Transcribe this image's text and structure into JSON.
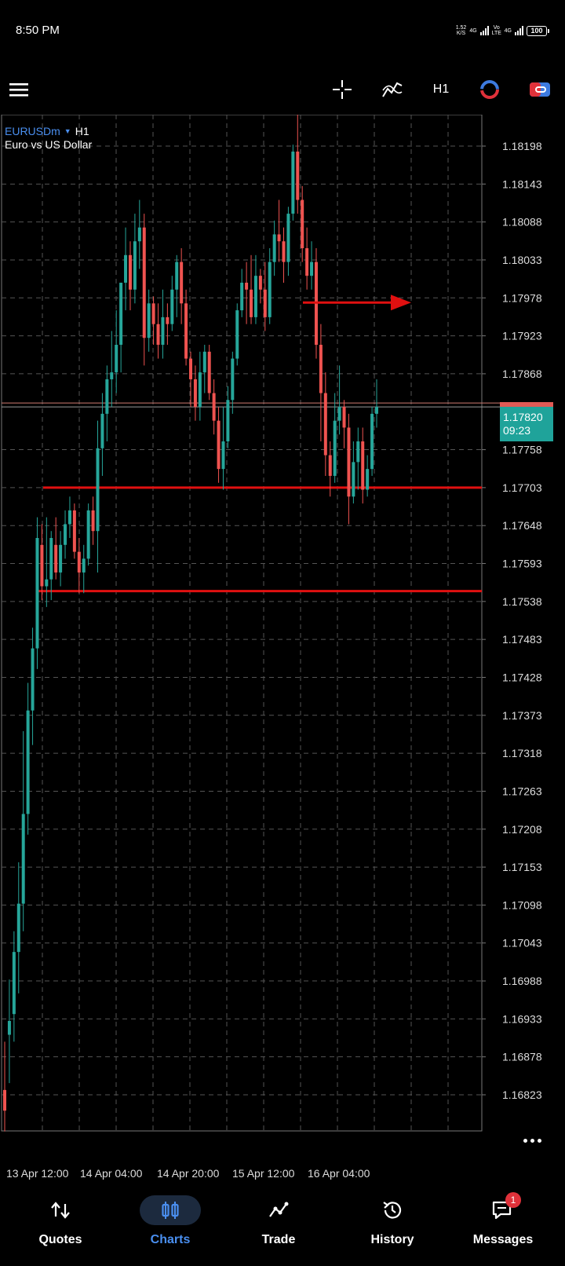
{
  "status_bar": {
    "time": "8:50 PM",
    "net_speed": "1.52",
    "net_speed_unit": "K/S",
    "sim1_type": "4G",
    "volte": "Vo LTE",
    "sim2_type": "4G",
    "battery": "100"
  },
  "toolbar": {
    "menu_icon": "hamburger-icon",
    "crosshair_icon": "crosshair-icon",
    "indicators_icon": "indicators-icon",
    "timeframe": "H1",
    "objects_icon": "objects-icon",
    "trade_toggle_icon": "one-click-trade-icon"
  },
  "chart": {
    "symbol": "EURUSDm",
    "timeframe": "H1",
    "description": "Euro vs US Dollar",
    "price_tag": {
      "price": "1.17820",
      "countdown": "09:23"
    },
    "colors": {
      "bull": "#26a69a",
      "bear": "#ef5350",
      "line": "#e01010",
      "grid": "#555555",
      "tag": "#1fa39a"
    }
  },
  "chart_data": {
    "type": "candlestick",
    "y_ticks": [
      "1.18198",
      "1.18143",
      "1.18088",
      "1.18033",
      "1.17978",
      "1.17923",
      "1.17868",
      "1.17758",
      "1.17703",
      "1.17648",
      "1.17593",
      "1.17538",
      "1.17483",
      "1.17428",
      "1.17373",
      "1.17318",
      "1.17263",
      "1.17208",
      "1.17153",
      "1.17098",
      "1.17043",
      "1.16988",
      "1.16933",
      "1.16878",
      "1.16823"
    ],
    "x_labels": [
      "13 Apr 12:00",
      "14 Apr 04:00",
      "14 Apr 20:00",
      "15 Apr 12:00",
      "16 Apr 04:00"
    ],
    "ylim": [
      1.16785,
      1.18245
    ],
    "current_price": 1.1782,
    "horizontal_lines": [
      1.17703,
      1.17553
    ],
    "candles": [
      [
        1.1683,
        1.168,
        1.169,
        1.1677
      ],
      [
        1.1691,
        1.1693,
        1.1699,
        1.1684
      ],
      [
        1.1694,
        1.1703,
        1.1706,
        1.169
      ],
      [
        1.1703,
        1.171,
        1.1716,
        1.1697
      ],
      [
        1.171,
        1.1723,
        1.1735,
        1.1706
      ],
      [
        1.1723,
        1.1738,
        1.1742,
        1.172
      ],
      [
        1.1738,
        1.1747,
        1.175,
        1.1733
      ],
      [
        1.1747,
        1.1763,
        1.1766,
        1.1744
      ],
      [
        1.1762,
        1.1756,
        1.1765,
        1.1754
      ],
      [
        1.1756,
        1.1757,
        1.1766,
        1.1753
      ],
      [
        1.1757,
        1.1763,
        1.1764,
        1.1754
      ],
      [
        1.1762,
        1.1758,
        1.1766,
        1.1757
      ],
      [
        1.1758,
        1.1762,
        1.1764,
        1.1756
      ],
      [
        1.1762,
        1.1765,
        1.1767,
        1.176
      ],
      [
        1.1765,
        1.1767,
        1.1769,
        1.1763
      ],
      [
        1.1767,
        1.1761,
        1.1768,
        1.176
      ],
      [
        1.1761,
        1.1758,
        1.1763,
        1.1755
      ],
      [
        1.1758,
        1.176,
        1.1762,
        1.1755
      ],
      [
        1.176,
        1.1767,
        1.1768,
        1.1759
      ],
      [
        1.1767,
        1.1764,
        1.1769,
        1.1762
      ],
      [
        1.1764,
        1.1776,
        1.178,
        1.1758
      ],
      [
        1.1776,
        1.1781,
        1.1784,
        1.1772
      ],
      [
        1.1781,
        1.1786,
        1.1788,
        1.1777
      ],
      [
        1.1786,
        1.1787,
        1.1793,
        1.1782
      ],
      [
        1.1787,
        1.1791,
        1.1796,
        1.1784
      ],
      [
        1.1791,
        1.18,
        1.18,
        1.1787
      ],
      [
        1.18,
        1.1804,
        1.1808,
        1.1796
      ],
      [
        1.1804,
        1.1799,
        1.1806,
        1.1796
      ],
      [
        1.1799,
        1.1806,
        1.181,
        1.1797
      ],
      [
        1.1806,
        1.1808,
        1.1812,
        1.1802
      ],
      [
        1.1808,
        1.1792,
        1.181,
        1.1788
      ],
      [
        1.1792,
        1.1797,
        1.1799,
        1.179
      ],
      [
        1.1797,
        1.1794,
        1.1798,
        1.1791
      ],
      [
        1.1794,
        1.1791,
        1.1797,
        1.1789
      ],
      [
        1.1791,
        1.1795,
        1.1799,
        1.1789
      ],
      [
        1.1795,
        1.1794,
        1.1797,
        1.1791
      ],
      [
        1.1794,
        1.1799,
        1.1801,
        1.1793
      ],
      [
        1.1799,
        1.1803,
        1.1804,
        1.1795
      ],
      [
        1.1803,
        1.1797,
        1.1805,
        1.1794
      ],
      [
        1.1797,
        1.1789,
        1.1799,
        1.1788
      ],
      [
        1.1789,
        1.1786,
        1.179,
        1.1782
      ],
      [
        1.1786,
        1.1782,
        1.1788,
        1.178
      ],
      [
        1.1782,
        1.1787,
        1.179,
        1.178
      ],
      [
        1.1787,
        1.179,
        1.1791,
        1.1784
      ],
      [
        1.179,
        1.1784,
        1.1791,
        1.1783
      ],
      [
        1.1784,
        1.178,
        1.1786,
        1.1778
      ],
      [
        1.178,
        1.1773,
        1.1782,
        1.1771
      ],
      [
        1.1773,
        1.1777,
        1.1782,
        1.177
      ],
      [
        1.1777,
        1.1783,
        1.1785,
        1.1776
      ],
      [
        1.1783,
        1.1789,
        1.179,
        1.1781
      ],
      [
        1.1789,
        1.1796,
        1.1797,
        1.1788
      ],
      [
        1.1796,
        1.18,
        1.1802,
        1.1795
      ],
      [
        1.18,
        1.1799,
        1.1803,
        1.1794
      ],
      [
        1.1799,
        1.1795,
        1.1804,
        1.1794
      ],
      [
        1.1795,
        1.1801,
        1.1804,
        1.1794
      ],
      [
        1.1801,
        1.1799,
        1.1802,
        1.1797
      ],
      [
        1.1799,
        1.1795,
        1.1803,
        1.1793
      ],
      [
        1.1795,
        1.1803,
        1.1805,
        1.1794
      ],
      [
        1.1803,
        1.1807,
        1.1809,
        1.1801
      ],
      [
        1.1807,
        1.1806,
        1.1812,
        1.1803
      ],
      [
        1.1806,
        1.1803,
        1.1808,
        1.18
      ],
      [
        1.1803,
        1.181,
        1.1811,
        1.1801
      ],
      [
        1.181,
        1.1819,
        1.182,
        1.1809
      ],
      [
        1.1819,
        1.1812,
        1.1826,
        1.181
      ],
      [
        1.1812,
        1.1805,
        1.1814,
        1.1803
      ],
      [
        1.1805,
        1.1801,
        1.1808,
        1.1799
      ],
      [
        1.1801,
        1.1803,
        1.1806,
        1.1799
      ],
      [
        1.1803,
        1.1791,
        1.1805,
        1.1789
      ],
      [
        1.1791,
        1.1784,
        1.1794,
        1.1777
      ],
      [
        1.1784,
        1.1775,
        1.1787,
        1.1772
      ],
      [
        1.1775,
        1.1772,
        1.1777,
        1.1769
      ],
      [
        1.1772,
        1.178,
        1.1784,
        1.1771
      ],
      [
        1.178,
        1.1782,
        1.1788,
        1.1778
      ],
      [
        1.1782,
        1.1779,
        1.1783,
        1.1776
      ],
      [
        1.1779,
        1.1769,
        1.1781,
        1.1765
      ],
      [
        1.1769,
        1.1774,
        1.1777,
        1.1768
      ],
      [
        1.1774,
        1.1777,
        1.1779,
        1.177
      ],
      [
        1.1777,
        1.177,
        1.1779,
        1.1768
      ],
      [
        1.177,
        1.1773,
        1.1775,
        1.1769
      ],
      [
        1.1773,
        1.1781,
        1.1782,
        1.1772
      ],
      [
        1.1781,
        1.1782,
        1.1786,
        1.1779
      ]
    ]
  },
  "nav": {
    "items": [
      {
        "label": "Quotes",
        "icon": "quotes-icon"
      },
      {
        "label": "Charts",
        "icon": "charts-icon"
      },
      {
        "label": "Trade",
        "icon": "trade-icon"
      },
      {
        "label": "History",
        "icon": "history-icon"
      },
      {
        "label": "Messages",
        "icon": "messages-icon",
        "badge": "1"
      }
    ],
    "active": "Charts"
  }
}
